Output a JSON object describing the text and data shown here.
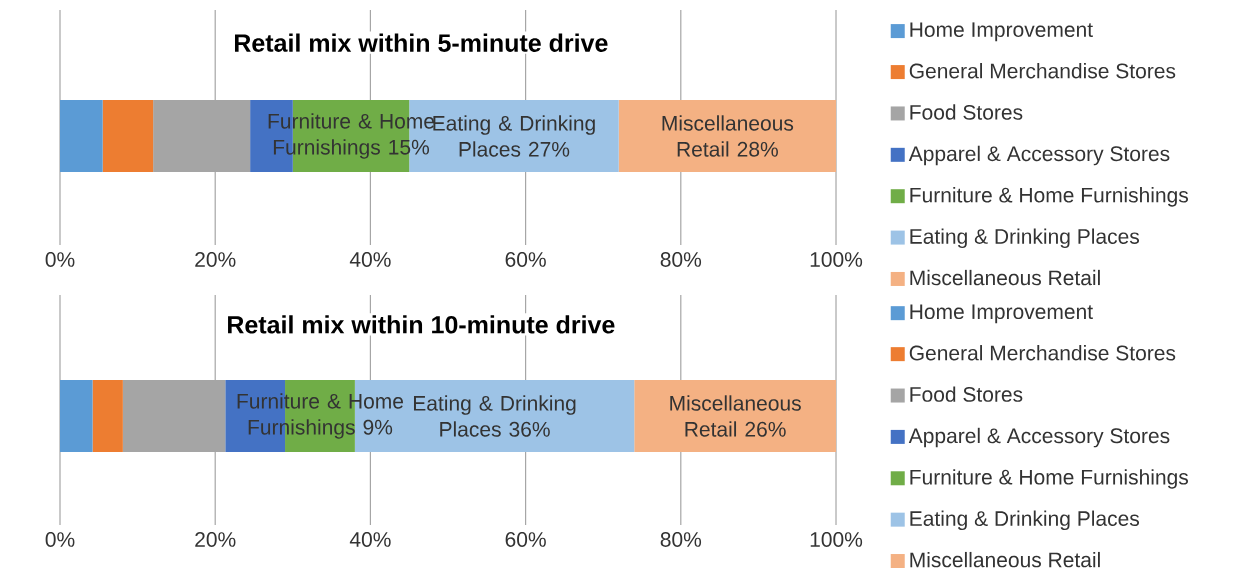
{
  "chart_data": [
    {
      "type": "bar",
      "orientation": "horizontal",
      "stacked": true,
      "title": "Retail mix within 5-minute drive",
      "categories": [
        null
      ],
      "xlim": [
        0,
        100
      ],
      "xticks": [
        {
          "value": 0,
          "label": "0%"
        },
        {
          "value": 20,
          "label": "20%"
        },
        {
          "value": 40,
          "label": "40%"
        },
        {
          "value": 60,
          "label": "60%"
        },
        {
          "value": 80,
          "label": "80%"
        },
        {
          "value": 100,
          "label": "100%"
        }
      ],
      "grid": "x",
      "legend": "right",
      "series": [
        {
          "name": "Home Improvement",
          "color": "#5b9bd5",
          "values": [
            5.5
          ]
        },
        {
          "name": "General Merchandise Stores",
          "color": "#ed7d31",
          "values": [
            6.5
          ]
        },
        {
          "name": "Food Stores",
          "color": "#a5a5a5",
          "values": [
            12.5
          ]
        },
        {
          "name": "Apparel & Accessory Stores",
          "color": "#4472c4",
          "values": [
            5.5
          ]
        },
        {
          "name": "Furniture & Home Furnishings",
          "color": "#70ad47",
          "values": [
            15
          ],
          "value_labels": [
            "Furniture & Home Furnishings 15%"
          ]
        },
        {
          "name": "Eating & Drinking Places",
          "color": "#9dc3e6",
          "values": [
            27
          ],
          "value_labels": [
            "Eating & Drinking Places 27%"
          ]
        },
        {
          "name": "Miscellaneous Retail",
          "color": "#f4b183",
          "values": [
            28
          ],
          "value_labels": [
            "Miscellaneous Retail 28%"
          ]
        }
      ]
    },
    {
      "type": "bar",
      "orientation": "horizontal",
      "stacked": true,
      "title": "Retail mix within 10-minute drive",
      "categories": [
        null
      ],
      "xlim": [
        0,
        100
      ],
      "xticks": [
        {
          "value": 0,
          "label": "0%"
        },
        {
          "value": 20,
          "label": "20%"
        },
        {
          "value": 40,
          "label": "40%"
        },
        {
          "value": 60,
          "label": "60%"
        },
        {
          "value": 80,
          "label": "80%"
        },
        {
          "value": 100,
          "label": "100%"
        }
      ],
      "grid": "x",
      "legend": "right",
      "series": [
        {
          "name": "Home Improvement",
          "color": "#5b9bd5",
          "values": [
            4.2
          ]
        },
        {
          "name": "General Merchandise Stores",
          "color": "#ed7d31",
          "values": [
            3.9
          ]
        },
        {
          "name": "Food Stores",
          "color": "#a5a5a5",
          "values": [
            13.2
          ]
        },
        {
          "name": "Apparel & Accessory Stores",
          "color": "#4472c4",
          "values": [
            7.7
          ]
        },
        {
          "name": "Furniture & Home Furnishings",
          "color": "#70ad47",
          "values": [
            9
          ],
          "value_labels": [
            "Furniture & Home Furnishings 9%"
          ]
        },
        {
          "name": "Eating & Drinking Places",
          "color": "#9dc3e6",
          "values": [
            36
          ],
          "value_labels": [
            "Eating & Drinking Places 36%"
          ]
        },
        {
          "name": "Miscellaneous Retail",
          "color": "#f4b183",
          "values": [
            26
          ],
          "value_labels": [
            "Miscellaneous Retail 26%"
          ]
        }
      ]
    }
  ]
}
